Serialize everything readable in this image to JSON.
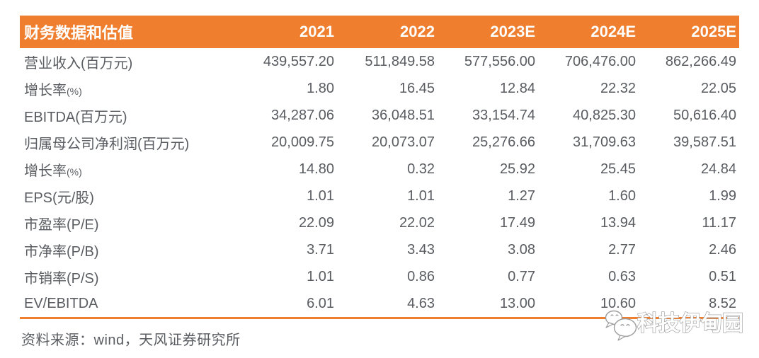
{
  "table": {
    "title": "财务数据和估值",
    "columns": [
      "2021",
      "2022",
      "2023E",
      "2024E",
      "2025E"
    ],
    "rows": [
      {
        "label": "营业收入",
        "unit": "(百万元)",
        "small_unit": false,
        "values": [
          "439,557.20",
          "511,849.58",
          "577,556.00",
          "706,476.00",
          "862,266.49"
        ]
      },
      {
        "label": "增长率",
        "unit": "(%)",
        "small_unit": true,
        "values": [
          "1.80",
          "16.45",
          "12.84",
          "22.32",
          "22.05"
        ]
      },
      {
        "label": "EBITDA",
        "unit": "(百万元)",
        "small_unit": false,
        "values": [
          "34,287.06",
          "36,048.51",
          "33,154.74",
          "40,825.30",
          "50,616.40"
        ]
      },
      {
        "label": "归属母公司净利润",
        "unit": "(百万元)",
        "small_unit": false,
        "values": [
          "20,009.75",
          "20,073.07",
          "25,276.66",
          "31,709.63",
          "39,587.51"
        ]
      },
      {
        "label": "增长率",
        "unit": "(%)",
        "small_unit": true,
        "values": [
          "14.80",
          "0.32",
          "25.92",
          "25.45",
          "24.84"
        ]
      },
      {
        "label": "EPS",
        "unit": "(元/股)",
        "small_unit": false,
        "values": [
          "1.01",
          "1.01",
          "1.27",
          "1.60",
          "1.99"
        ]
      },
      {
        "label": "市盈率",
        "unit": "(P/E)",
        "small_unit": false,
        "values": [
          "22.09",
          "22.02",
          "17.49",
          "13.94",
          "11.17"
        ]
      },
      {
        "label": "市净率",
        "unit": "(P/B)",
        "small_unit": false,
        "values": [
          "3.71",
          "3.43",
          "3.08",
          "2.77",
          "2.46"
        ]
      },
      {
        "label": "市销率",
        "unit": "(P/S)",
        "small_unit": false,
        "values": [
          "1.01",
          "0.86",
          "0.77",
          "0.63",
          "0.51"
        ]
      },
      {
        "label": "EV/EBITDA",
        "unit": "",
        "small_unit": false,
        "values": [
          "6.01",
          "4.63",
          "13.00",
          "10.60",
          "8.52"
        ]
      }
    ]
  },
  "footer": {
    "source_text": "资料来源：wind，天风证券研究所"
  },
  "watermark": {
    "text": "科技伊甸园",
    "logo": "wechat-icon"
  },
  "colors": {
    "accent": "#EF7F2E",
    "header_text": "#FFFFFF",
    "body_text": "#595C61",
    "watermark_stroke": "#9C9C9C"
  }
}
